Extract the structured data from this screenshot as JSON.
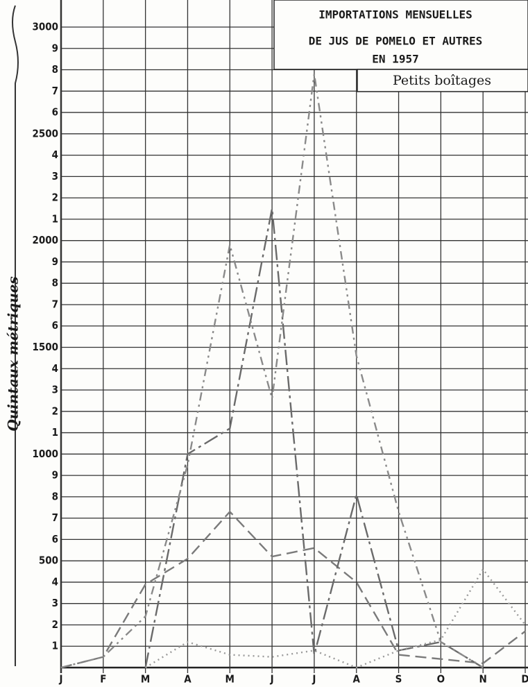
{
  "chart_data": {
    "type": "line",
    "title": [
      "IMPORTATIONS MENSUELLES",
      "DE JUS DE POMELO  ET AUTRES",
      "EN 1957"
    ],
    "subtitle": "Petits boîtages",
    "y_label": "Quintaux métriques",
    "categories": [
      "J",
      "F",
      "M",
      "A",
      "M",
      "J",
      "J",
      "A",
      "S",
      "O",
      "N",
      "D"
    ],
    "series": [
      {
        "color": "#7a7a7a",
        "dash": "16,8",
        "values": [
          0,
          50,
          390,
          510,
          730,
          520,
          560,
          400,
          60,
          40,
          20,
          170
        ]
      },
      {
        "color": "#6a6a6a",
        "dash": "22,6,4,6",
        "values": [
          null,
          null,
          0,
          1000,
          1120,
          2150,
          60,
          810,
          80,
          120,
          0,
          null
        ]
      },
      {
        "color": "#8a8a8a",
        "dash": "12,6,3,6,3,6",
        "values": [
          0,
          50,
          240,
          950,
          1980,
          1260,
          2780,
          1460,
          730,
          120,
          0,
          null
        ]
      },
      {
        "color": "#9a9a9a",
        "dash": "2,5",
        "values": [
          null,
          null,
          0,
          120,
          60,
          50,
          80,
          0,
          80,
          130,
          460,
          200
        ]
      }
    ],
    "ylim": [
      0,
      3000
    ],
    "yticks": [
      {
        "value": 100,
        "label": "1"
      },
      {
        "value": 200,
        "label": "2"
      },
      {
        "value": 300,
        "label": "3"
      },
      {
        "value": 400,
        "label": "4"
      },
      500,
      {
        "value": 600,
        "label": "6"
      },
      {
        "value": 700,
        "label": "7"
      },
      {
        "value": 800,
        "label": "8"
      },
      {
        "value": 900,
        "label": "9"
      },
      1000,
      {
        "value": 1100,
        "label": "1"
      },
      {
        "value": 1200,
        "label": "2"
      },
      {
        "value": 1300,
        "label": "3"
      },
      {
        "value": 1400,
        "label": "4"
      },
      1500,
      {
        "value": 1600,
        "label": "6"
      },
      {
        "value": 1700,
        "label": "7"
      },
      {
        "value": 1800,
        "label": "8"
      },
      {
        "value": 1900,
        "label": "9"
      },
      2000,
      {
        "value": 2100,
        "label": "1"
      },
      {
        "value": 2200,
        "label": "2"
      },
      {
        "value": 2300,
        "label": "3"
      },
      {
        "value": 2400,
        "label": "4"
      },
      2500,
      {
        "value": 2600,
        "label": "6"
      },
      {
        "value": 2700,
        "label": "7"
      },
      {
        "value": 2800,
        "label": "8"
      },
      {
        "value": 2900,
        "label": "9"
      },
      3000
    ],
    "grid": true
  }
}
